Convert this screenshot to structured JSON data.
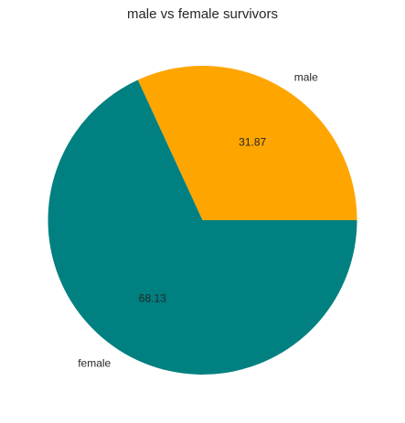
{
  "chart_data": {
    "type": "pie",
    "title": "male vs female survivors",
    "labels": [
      "male",
      "female"
    ],
    "values": [
      31.87,
      68.13
    ],
    "value_labels": [
      "31.87",
      "68.13"
    ],
    "colors": [
      "#FFA500",
      "#008080"
    ],
    "start_angle_deg": 0,
    "direction": "counterclockwise"
  }
}
